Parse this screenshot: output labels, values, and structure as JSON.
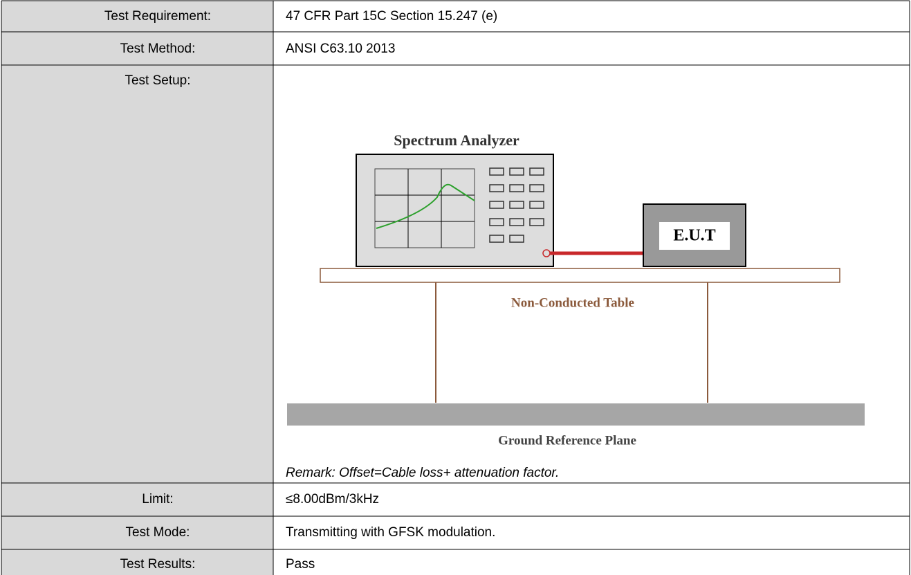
{
  "table": {
    "rows": [
      {
        "label": "Test Requirement:",
        "value": "47 CFR Part 15C Section 15.247 (e)"
      },
      {
        "label": "Test Method:",
        "value": "ANSI C63.10 2013"
      },
      {
        "label": "Test Setup:"
      },
      {
        "label": "Limit:",
        "value": "≤8.00dBm/3kHz"
      },
      {
        "label": "Test Mode:",
        "value": "Transmitting with GFSK modulation."
      },
      {
        "label": "Test Results:",
        "value": "Pass"
      }
    ]
  },
  "setup_diagram": {
    "analyzer": "Spectrum Analyzer",
    "eut": "E.U.T",
    "table": "Non-Conducted Table",
    "ground": "Ground Reference Plane",
    "remark": "Remark: Offset=Cable loss+ attenuation factor."
  }
}
